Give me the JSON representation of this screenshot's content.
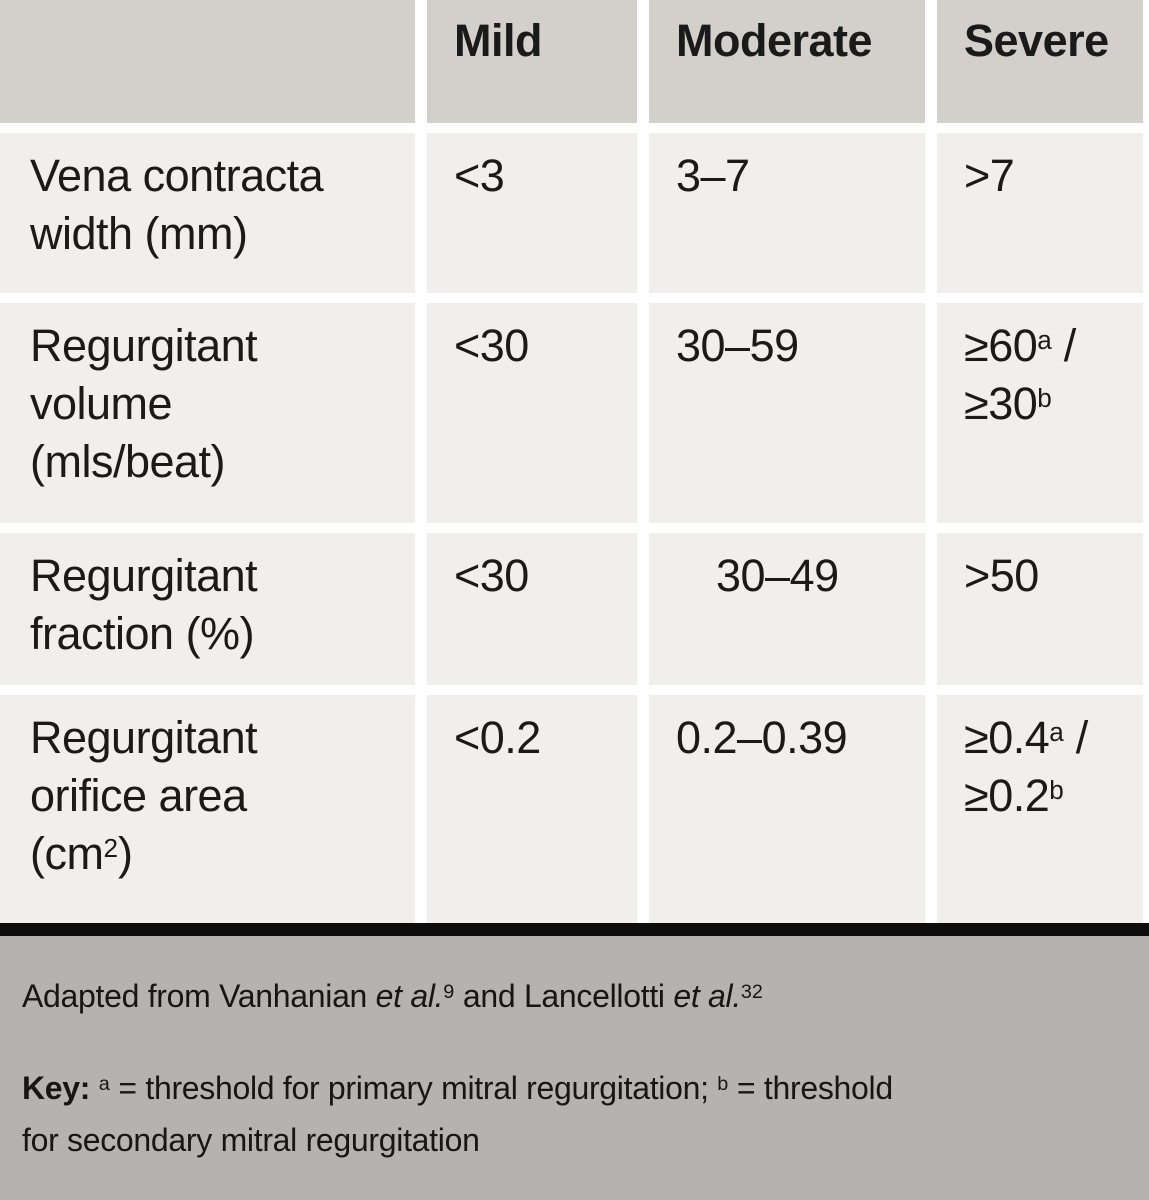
{
  "colors": {
    "header_bg": "#d3d0cb",
    "row_bg": "#f0efed",
    "footer_bg": "#b4b3b1",
    "divider_bar": "#0d0d0d",
    "text": "#1a1a1a"
  },
  "table": {
    "header": {
      "col1": "",
      "col2": "Mild",
      "col3": "Moderate",
      "col4": "Severe"
    },
    "rows": [
      {
        "label_line1": "Vena contracta",
        "label_line2": "width (mm)",
        "mild": "<3",
        "moderate": "3–7",
        "severe": ">7"
      },
      {
        "label_line1": "Regurgitant",
        "label_line2": "volume",
        "label_line3": "(mls/beat)",
        "mild": "<30",
        "moderate": "30–59",
        "severe_value1": "≥60",
        "severe_sup1": "a",
        "severe_suffix1": " /",
        "severe_value2": "≥30",
        "severe_sup2": "b"
      },
      {
        "label_line1": "Regurgitant",
        "label_line2": "fraction (%)",
        "mild": "<30",
        "moderate": "30–49",
        "severe": ">50"
      },
      {
        "label_line1": "Regurgitant",
        "label_line2": "orifice area",
        "label_line3_prefix": "(cm",
        "label_line3_sup": "2",
        "label_line3_suffix": ")",
        "mild": "<0.2",
        "moderate": "0.2–0.39",
        "severe_value1": "≥0.4",
        "severe_sup1": "a",
        "severe_suffix1": " /",
        "severe_value2": "≥0.2",
        "severe_sup2": "b"
      }
    ]
  },
  "footer": {
    "adapted_prefix": "Adapted from Vanhanian ",
    "adapted_etal1": "et al.",
    "adapted_ref1": "9",
    "adapted_middle": " and Lancellotti ",
    "adapted_etal2": "et al.",
    "adapted_ref2": "32",
    "key_label": "Key: ",
    "key_sup_a": "a",
    "key_text_a": " = threshold for primary mitral regurgitation; ",
    "key_sup_b": "b",
    "key_text_b": " = threshold",
    "key_text_wrap": "for secondary mitral regurgitation"
  }
}
